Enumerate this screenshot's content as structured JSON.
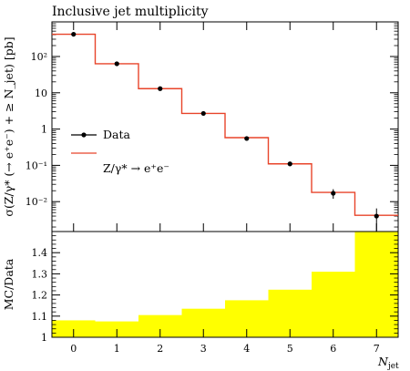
{
  "chart_data": {
    "type": "line",
    "title": "Inclusive jet multiplicity",
    "top_panel": {
      "ylabel": "σ(Z/γ* (→ e⁺e⁻) + ≥ N_jet) [pb]",
      "yscale": "log",
      "ylim": [
        0.0015,
        900
      ],
      "ytick_labels": [
        "10⁻²",
        "10⁻¹",
        "1",
        "10",
        "10²"
      ],
      "legend_position": "middle-left",
      "legend": [
        {
          "name": "Data",
          "style": "points"
        },
        {
          "name": "Z/γ* → e⁺e⁻",
          "style": "line"
        }
      ],
      "series": [
        {
          "name": "Data",
          "x": [
            0,
            1,
            2,
            3,
            4,
            5,
            6,
            7
          ],
          "y": [
            410,
            63,
            13,
            2.7,
            0.55,
            0.11,
            0.017,
            0.004
          ],
          "err": [
            10,
            3,
            0.7,
            0.15,
            0.05,
            0.015,
            0.005,
            0.0025
          ],
          "color": "#000000"
        },
        {
          "name": "Z/γ* → e⁺e⁻",
          "x": [
            0,
            1,
            2,
            3,
            4,
            5,
            6,
            7
          ],
          "y": [
            410,
            63,
            13,
            2.7,
            0.58,
            0.11,
            0.018,
            0.0042
          ],
          "color": "#e8442a"
        }
      ]
    },
    "ratio_panel": {
      "ylabel": "MC/Data",
      "ylim": [
        1,
        1.5
      ],
      "ytick_labels": [
        "1",
        "1.1",
        "1.2",
        "1.3",
        "1.4"
      ],
      "x": [
        0,
        1,
        2,
        3,
        4,
        5,
        6,
        7
      ],
      "values": [
        1.08,
        1.075,
        1.105,
        1.135,
        1.175,
        1.225,
        1.31,
        1.5
      ],
      "color": "#ffff00"
    },
    "xlabel": "N_jet",
    "xlim": [
      -0.5,
      7.5
    ],
    "x_tick_labels": [
      "0",
      "1",
      "2",
      "3",
      "4",
      "5",
      "6",
      "7"
    ]
  }
}
